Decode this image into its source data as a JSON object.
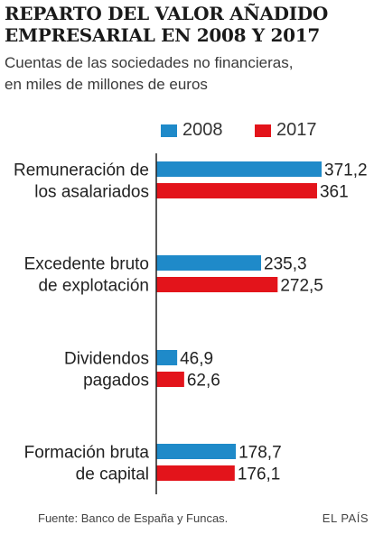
{
  "header": {
    "title_lines": [
      "REPARTO DEL VALOR AÑADIDO",
      "EMPRESARIAL EN 2008 Y 2017"
    ],
    "subtitle_lines": [
      "Cuentas de las sociedades no financieras,",
      "en miles de millones de euros"
    ]
  },
  "colors": {
    "series_2008": "#1f8ac9",
    "series_2017": "#e3141b",
    "axis": "#222222"
  },
  "chart_data": {
    "type": "bar",
    "orientation": "horizontal",
    "categories": [
      [
        "Remuneración de",
        "los asalariados"
      ],
      [
        "Excedente bruto",
        "de explotación"
      ],
      [
        "Dividendos",
        "pagados"
      ],
      [
        "Formación bruta",
        "de capital"
      ]
    ],
    "series": [
      {
        "name": "2008",
        "values": [
          371.2,
          235.3,
          46.9,
          178.7
        ],
        "labels": [
          "371,2",
          "235,3",
          "46,9",
          "178,7"
        ]
      },
      {
        "name": "2017",
        "values": [
          361,
          272.5,
          62.6,
          176.1
        ],
        "labels": [
          "361",
          "272,5",
          "62,6",
          "176,1"
        ]
      }
    ],
    "legend": "top",
    "grid": false,
    "xlim": [
      0,
      371.2
    ]
  },
  "footer": {
    "source": "Fuente: Banco de España y Funcas.",
    "brand": "EL PAÍS"
  }
}
